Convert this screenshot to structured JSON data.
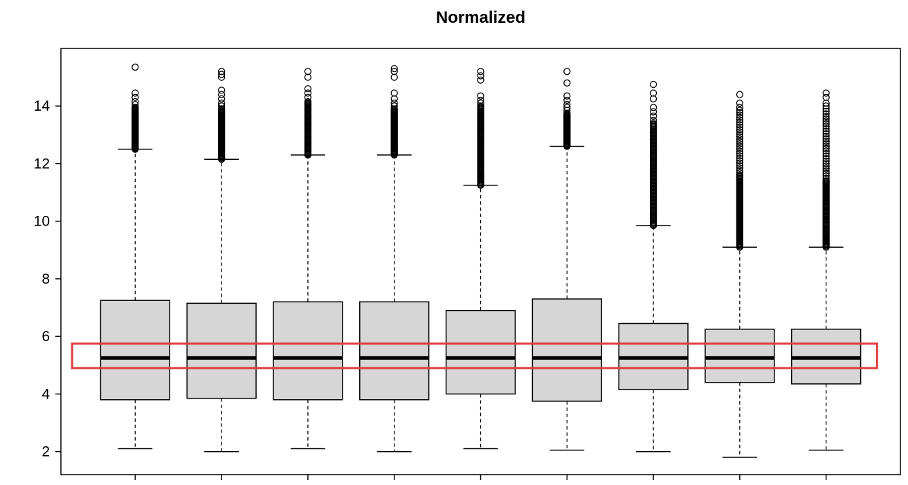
{
  "chart_data": {
    "type": "boxplot",
    "title": "Normalized",
    "xlabel": "",
    "ylabel": "",
    "ylim": [
      1.2,
      16.0
    ],
    "yticks": [
      2,
      4,
      6,
      8,
      10,
      12,
      14
    ],
    "grid": false,
    "legend": "none",
    "n_groups": 9,
    "x_tick_labels_visible": false,
    "box_fill": "#d6d6d6",
    "box_stroke": "#000000",
    "whisker_style": "dashed",
    "boxes": [
      {
        "lower_whisker": 2.1,
        "q1": 3.8,
        "median": 5.25,
        "q3": 7.25,
        "upper_whisker": 12.5,
        "outlier_runs": [
          {
            "from": 12.5,
            "to": 13.95,
            "count": 50
          }
        ],
        "outlier_points": [
          14.05,
          14.15,
          14.3,
          14.45,
          15.35
        ]
      },
      {
        "lower_whisker": 2.0,
        "q1": 3.85,
        "median": 5.25,
        "q3": 7.15,
        "upper_whisker": 12.15,
        "outlier_runs": [
          {
            "from": 12.15,
            "to": 13.9,
            "count": 55
          }
        ],
        "outlier_points": [
          14.0,
          14.1,
          14.25,
          14.4,
          14.55,
          15.0,
          15.1,
          15.2
        ]
      },
      {
        "lower_whisker": 2.1,
        "q1": 3.8,
        "median": 5.25,
        "q3": 7.2,
        "upper_whisker": 12.3,
        "outlier_runs": [
          {
            "from": 12.3,
            "to": 14.15,
            "count": 55
          }
        ],
        "outlier_points": [
          14.3,
          14.45,
          14.6,
          15.0,
          15.2
        ]
      },
      {
        "lower_whisker": 2.0,
        "q1": 3.8,
        "median": 5.25,
        "q3": 7.2,
        "upper_whisker": 12.3,
        "outlier_runs": [
          {
            "from": 12.3,
            "to": 13.9,
            "count": 50
          }
        ],
        "outlier_points": [
          14.0,
          14.1,
          14.25,
          14.45,
          15.0,
          15.2,
          15.3
        ]
      },
      {
        "lower_whisker": 2.1,
        "q1": 4.0,
        "median": 5.25,
        "q3": 6.9,
        "upper_whisker": 11.25,
        "outlier_runs": [
          {
            "from": 11.25,
            "to": 14.0,
            "count": 75
          }
        ],
        "outlier_points": [
          14.1,
          14.2,
          14.35,
          14.9,
          15.05,
          15.2
        ]
      },
      {
        "lower_whisker": 2.05,
        "q1": 3.75,
        "median": 5.25,
        "q3": 7.3,
        "upper_whisker": 12.6,
        "outlier_runs": [
          {
            "from": 12.6,
            "to": 13.75,
            "count": 40
          }
        ],
        "outlier_points": [
          13.85,
          13.95,
          14.05,
          14.2,
          14.35,
          14.8,
          15.2
        ]
      },
      {
        "lower_whisker": 2.0,
        "q1": 4.15,
        "median": 5.25,
        "q3": 6.45,
        "upper_whisker": 9.85,
        "outlier_runs": [
          {
            "from": 9.85,
            "to": 13.4,
            "count": 90
          }
        ],
        "outlier_points": [
          13.5,
          13.65,
          13.8,
          13.95,
          14.25,
          14.45,
          14.75
        ]
      },
      {
        "lower_whisker": 1.8,
        "q1": 4.4,
        "median": 5.25,
        "q3": 6.25,
        "upper_whisker": 9.1,
        "outlier_runs": [
          {
            "from": 9.1,
            "to": 11.6,
            "count": 65
          },
          {
            "from": 11.6,
            "to": 13.85,
            "count": 28
          }
        ],
        "outlier_points": [
          13.95,
          14.1,
          14.4
        ]
      },
      {
        "lower_whisker": 2.05,
        "q1": 4.35,
        "median": 5.25,
        "q3": 6.25,
        "upper_whisker": 9.1,
        "outlier_runs": [
          {
            "from": 9.1,
            "to": 11.4,
            "count": 60
          },
          {
            "from": 11.4,
            "to": 13.9,
            "count": 30
          }
        ],
        "outlier_points": [
          14.0,
          14.1,
          14.3,
          14.45
        ]
      }
    ],
    "highlight_rect": {
      "description": "red rectangle annotation highlighting the aligned median band across all boxplots",
      "x_from_unit": 0.27,
      "x_to_unit": 9.59,
      "y_from": 4.9,
      "y_to": 5.75,
      "color": "#e23b3b",
      "stroke_width": 3
    }
  }
}
